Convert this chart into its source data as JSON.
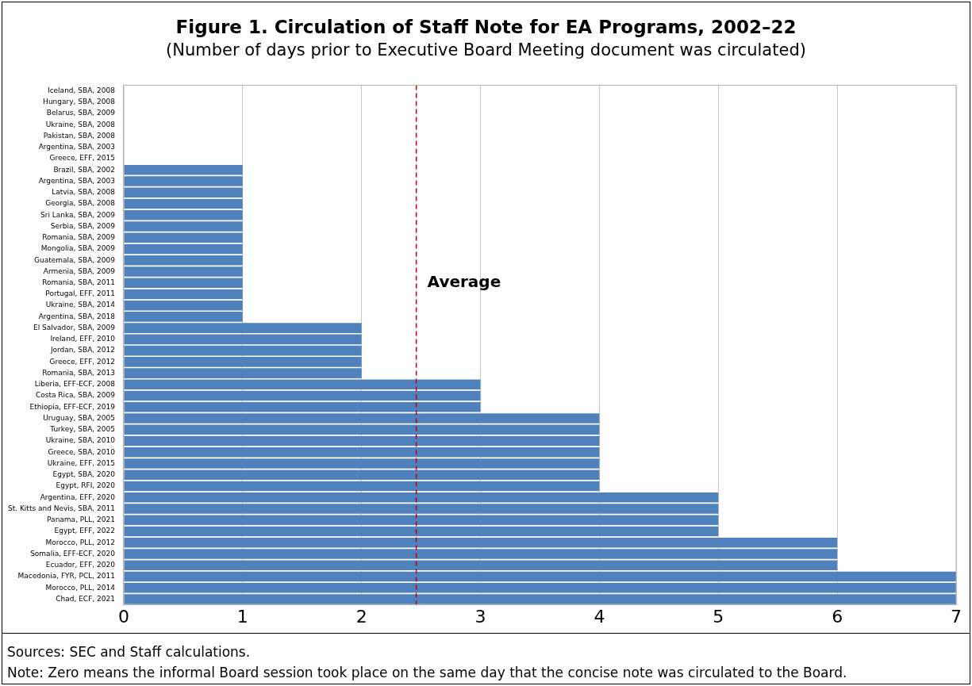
{
  "chart_data": {
    "type": "bar",
    "orientation": "horizontal",
    "title": "Figure 1. Circulation of Staff Note for EA Programs, 2002–22",
    "subtitle": "(Number of days prior to Executive Board Meeting document was circulated)",
    "categories": [
      "Iceland, SBA, 2008",
      "Hungary, SBA, 2008",
      "Belarus, SBA, 2009",
      "Ukraine, SBA, 2008",
      "Pakistan, SBA, 2008",
      "Argentina, SBA, 2003",
      "Greece, EFF, 2015",
      "Brazil, SBA, 2002",
      "Argentina, SBA, 2003",
      "Latvia, SBA, 2008",
      "Georgia, SBA, 2008",
      "Sri Lanka, SBA, 2009",
      "Serbia, SBA, 2009",
      "Romania, SBA, 2009",
      "Mongolia, SBA, 2009",
      "Guatemala, SBA, 2009",
      "Armenia, SBA, 2009",
      "Romania, SBA, 2011",
      "Portugal, EFF, 2011",
      "Ukraine, SBA, 2014",
      "Argentina, SBA, 2018",
      "El Salvador, SBA, 2009",
      "Ireland, EFF, 2010",
      "Jordan, SBA, 2012",
      "Greece, EFF, 2012",
      "Romania, SBA, 2013",
      "Liberia, EFF-ECF, 2008",
      "Costa Rica, SBA, 2009",
      "Ethiopia, EFF-ECF, 2019",
      "Uruguay, SBA, 2005",
      "Turkey, SBA, 2005",
      "Ukraine, SBA, 2010",
      "Greece, SBA, 2010",
      "Ukraine, EFF, 2015",
      "Egypt, SBA, 2020",
      "Egypt, RFI, 2020",
      "Argentina, EFF, 2020",
      "St. Kitts and Nevis, SBA, 2011",
      "Panama, PLL, 2021",
      "Egypt, EFF, 2022",
      "Morocco, PLL, 2012",
      "Somalia, EFF-ECF, 2020",
      "Ecuador, EFF, 2020",
      "Macedonia, FYR, PCL, 2011",
      "Morocco, PLL, 2014",
      "Chad, ECF, 2021"
    ],
    "values": [
      0,
      0,
      0,
      0,
      0,
      0,
      0,
      1,
      1,
      1,
      1,
      1,
      1,
      1,
      1,
      1,
      1,
      1,
      1,
      1,
      1,
      2,
      2,
      2,
      2,
      2,
      3,
      3,
      3,
      4,
      4,
      4,
      4,
      4,
      4,
      4,
      5,
      5,
      5,
      5,
      6,
      6,
      6,
      7,
      7,
      7
    ],
    "color": "#4f81bd",
    "xlim": [
      0,
      7
    ],
    "xticks": [
      0,
      1,
      2,
      3,
      4,
      5,
      6,
      7
    ],
    "grid": "x",
    "ref_lines": [
      {
        "axis": "x",
        "value": 2.46,
        "label": "Average",
        "color": "#c00000",
        "line_style": "dashed"
      }
    ],
    "annotations": [
      "Sources: SEC and Staff calculations.",
      "Note: Zero means the informal Board session took place on the same day that the concise note was circulated to the Board."
    ]
  }
}
